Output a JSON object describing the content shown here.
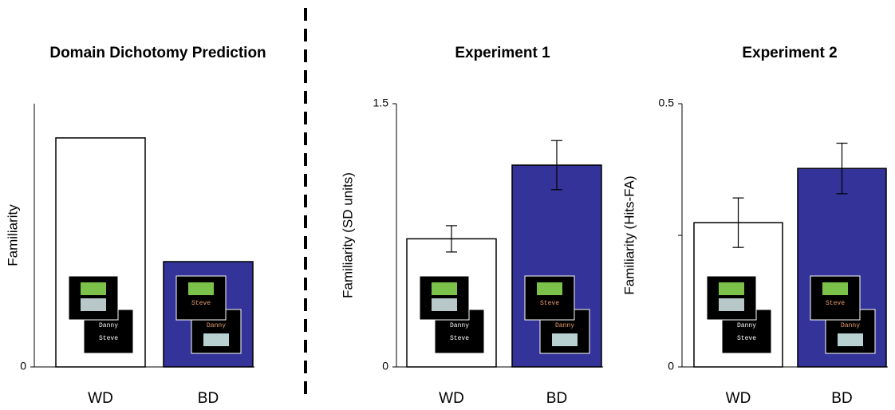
{
  "chart_data": [
    {
      "type": "bar",
      "title": "Domain Dichotomy Prediction",
      "y_label": "Familiarity",
      "categories": [
        "WD",
        "BD"
      ],
      "values": [
        0.87,
        0.4
      ],
      "colors": [
        "#ffffff",
        "#333399"
      ],
      "ylim": [
        0,
        1
      ],
      "yticks": [
        0
      ]
    },
    {
      "type": "bar",
      "title": "Experiment 1",
      "y_label": "Familiarity (SD units)",
      "categories": [
        "WD",
        "BD"
      ],
      "values": [
        0.73,
        1.15
      ],
      "errors": [
        0.075,
        0.14
      ],
      "colors": [
        "#ffffff",
        "#333399"
      ],
      "ylim": [
        0,
        1.5
      ],
      "yticks": [
        0,
        1.5
      ]
    },
    {
      "type": "bar",
      "title": "Experiment 2",
      "y_label": "Familiarity (Hits-FA)",
      "categories": [
        "WD",
        "BD"
      ],
      "values": [
        0.274,
        0.377
      ],
      "errors": [
        0.047,
        0.048
      ],
      "colors": [
        "#ffffff",
        "#333399"
      ],
      "ylim": [
        0,
        0.5
      ],
      "yticks": [
        0,
        0.5
      ],
      "minor_yticks": [
        0.25
      ]
    }
  ],
  "stimuli": [
    [
      "Danny",
      "Steve"
    ],
    [
      "Steve",
      "Danny"
    ]
  ]
}
